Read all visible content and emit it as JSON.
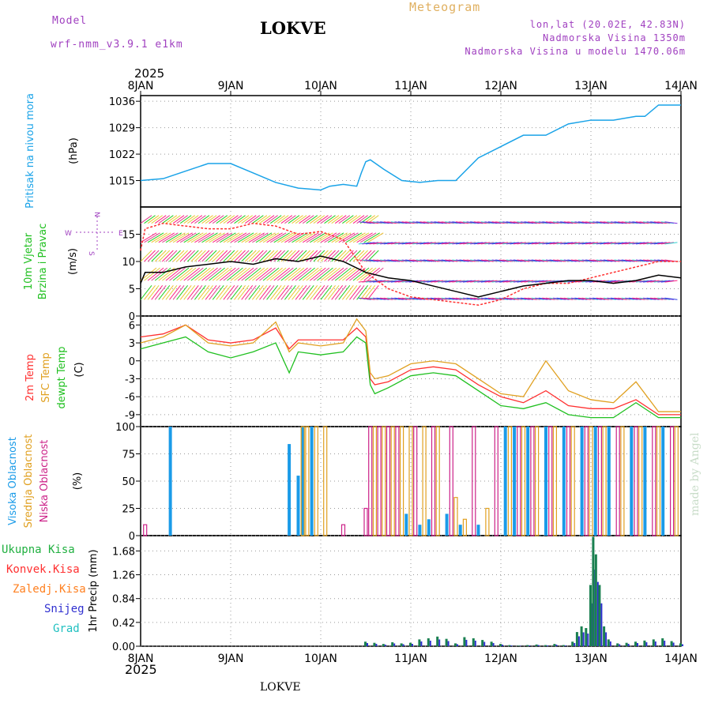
{
  "header": {
    "model_label": "Model",
    "model_name": "wrf-nmm_v3.9.1 e1km",
    "station": "LOKVE",
    "chart_kind": "Meteogram",
    "coords": "lon,lat (20.02E, 42.83N)",
    "altitude": "Nadmorska Visina 1350m",
    "model_altitude": "Nadmorska Visina u modelu 1470.06m",
    "year": "2025",
    "footer_station": "LOKVE",
    "watermark": "made by Angel"
  },
  "colors": {
    "pressure": "#1aa3e8",
    "temp2m": "#ff3030",
    "sfc": "#e0a020",
    "dewpt": "#20c020",
    "high_cloud": "#1a9be8",
    "mid_cloud": "#e0a020",
    "low_cloud": "#cc2288",
    "total_precip": "#20b040",
    "conv": "#ff3030",
    "frz": "#ff8020",
    "snow": "#3030d0",
    "grad": "#20c0c0",
    "gust": "#ff3030",
    "wind": "#000000"
  },
  "chart_data": [
    {
      "type": "line",
      "panel": "pressure",
      "ylabel": "Pritisak na nivou mora",
      "unit": "(hPa)",
      "x_ticks": [
        "8JAN",
        "9JAN",
        "10JAN",
        "11JAN",
        "12JAN",
        "13JAN",
        "14JAN"
      ],
      "yticks": [
        1015,
        1022,
        1029,
        1036
      ],
      "ylim": [
        1008,
        1037.5
      ],
      "x": [
        0,
        0.25,
        0.5,
        0.75,
        1.0,
        1.25,
        1.5,
        1.75,
        2.0,
        2.1,
        2.25,
        2.4,
        2.45,
        2.5,
        2.55,
        2.7,
        2.9,
        3.1,
        3.3,
        3.5,
        3.75,
        4.0,
        4.25,
        4.5,
        4.75,
        5.0,
        5.25,
        5.5,
        5.6,
        5.75,
        6.0
      ],
      "series": [
        {
          "values": [
            1015,
            1015.5,
            1017.5,
            1019.5,
            1019.5,
            1017,
            1014.5,
            1013,
            1012.5,
            1013.5,
            1014,
            1013.5,
            1017,
            1020,
            1020.5,
            1018,
            1015,
            1014.5,
            1015,
            1015,
            1021,
            1024,
            1027,
            1027,
            1030,
            1031,
            1031,
            1032,
            1032,
            1035,
            1035
          ]
        }
      ]
    },
    {
      "type": "line",
      "panel": "wind",
      "ylabel": "10m Vjetar Brzina i Pravac",
      "unit": "(m/s)",
      "direction_key": [
        "N",
        "E",
        "W",
        "S"
      ],
      "yticks": [
        0,
        5,
        10,
        15
      ],
      "ylim": [
        0,
        20
      ],
      "x": [
        0,
        0.05,
        0.25,
        0.5,
        0.75,
        1.0,
        1.25,
        1.5,
        1.75,
        2.0,
        2.25,
        2.5,
        2.75,
        3.0,
        3.25,
        3.5,
        3.75,
        4.0,
        4.25,
        4.5,
        4.75,
        5.0,
        5.25,
        5.5,
        5.75,
        6.0
      ],
      "series": [
        {
          "values": [
            6,
            8,
            8,
            9,
            9.5,
            10,
            9.5,
            10.5,
            10,
            11,
            10,
            8,
            7,
            6.5,
            5.5,
            4.5,
            3.5,
            4.5,
            5.5,
            6,
            6.5,
            6.5,
            6,
            6.5,
            7.5,
            7
          ]
        },
        {
          "values": [
            12,
            16,
            17,
            16.5,
            16,
            16,
            17,
            16.5,
            15,
            15.5,
            14,
            8,
            5,
            3.5,
            3,
            2.5,
            2,
            3,
            5,
            6,
            6,
            7,
            8,
            9,
            10,
            10
          ]
        }
      ]
    },
    {
      "type": "line",
      "panel": "temperature",
      "ylabel": "(C)",
      "series_labels": [
        "2m Temp",
        "SFC Temp",
        "dewpt Temp"
      ],
      "yticks": [
        -9,
        -6,
        -3,
        0,
        3,
        6
      ],
      "ylim": [
        -11,
        7.5
      ],
      "x": [
        0,
        0.25,
        0.5,
        0.75,
        1.0,
        1.25,
        1.5,
        1.65,
        1.75,
        2.0,
        2.25,
        2.4,
        2.5,
        2.55,
        2.6,
        2.75,
        3.0,
        3.25,
        3.5,
        3.75,
        4.0,
        4.25,
        4.5,
        4.75,
        5.0,
        5.25,
        5.5,
        5.75,
        6.0
      ],
      "series": [
        {
          "values": [
            4,
            4.5,
            6,
            3.5,
            3,
            3.5,
            5.5,
            2,
            3.5,
            3.5,
            3.5,
            5.5,
            4,
            -3,
            -4,
            -3.5,
            -1.5,
            -1,
            -1.5,
            -4,
            -6,
            -7,
            -5,
            -7.5,
            -8,
            -8,
            -6.5,
            -9,
            -9
          ]
        },
        {
          "values": [
            3,
            4,
            6,
            3,
            2.5,
            3,
            6.5,
            1.5,
            3,
            2.5,
            3,
            7,
            5,
            -2,
            -3,
            -2.5,
            -0.5,
            0,
            -0.5,
            -3,
            -5.5,
            -6,
            0,
            -5,
            -6.5,
            -7,
            -3.5,
            -8.5,
            -8.5
          ]
        },
        {
          "values": [
            2,
            3,
            4,
            1.5,
            0.5,
            1.5,
            3,
            -2,
            1.5,
            1,
            1.5,
            4,
            3,
            -4,
            -5.5,
            -4.5,
            -2.5,
            -2,
            -2.5,
            -5,
            -7.5,
            -8,
            -7,
            -9,
            -9.5,
            -9.5,
            -7,
            -9.5,
            -9.5
          ]
        }
      ]
    },
    {
      "type": "bar",
      "panel": "clouds",
      "unit": "(%)",
      "series_labels": [
        "Visoka Oblacnost",
        "Srednja Oblacnost",
        "Niska Oblacnost"
      ],
      "yticks": [
        0,
        25,
        50,
        75,
        100
      ],
      "ylim": [
        0,
        100
      ],
      "series": [
        {
          "x": [
            0.33,
            1.65,
            1.75,
            1.8,
            1.9,
            2.95,
            3.1,
            3.2,
            3.4,
            3.55,
            3.75,
            4.05,
            4.15,
            4.3,
            4.5,
            4.7,
            4.9,
            5.05,
            5.2,
            5.45,
            5.6,
            5.8
          ],
          "values": [
            100,
            84,
            55,
            100,
            100,
            20,
            10,
            15,
            20,
            10,
            10,
            100,
            100,
            100,
            100,
            100,
            100,
            100,
            100,
            100,
            100,
            100
          ]
        },
        {
          "x": [
            1.8,
            1.85,
            1.95,
            2.05,
            2.6,
            2.7,
            2.8,
            2.9,
            3.0,
            3.15,
            3.3,
            3.5,
            3.6,
            3.85,
            4.1,
            4.25,
            4.4,
            4.6,
            4.8,
            5.0,
            5.15,
            5.35,
            5.55,
            5.75,
            5.95
          ],
          "values": [
            100,
            100,
            100,
            100,
            100,
            100,
            100,
            100,
            100,
            100,
            100,
            35,
            15,
            25,
            100,
            100,
            100,
            100,
            100,
            100,
            100,
            100,
            100,
            100,
            100
          ]
        },
        {
          "x": [
            0.05,
            2.25,
            2.5,
            2.55,
            2.65,
            2.75,
            2.85,
            3.05,
            3.25,
            3.45,
            3.7,
            3.95,
            4.2,
            4.35,
            4.55,
            4.75,
            4.95,
            5.1,
            5.3,
            5.5,
            5.7,
            5.9
          ],
          "values": [
            10,
            10,
            25,
            100,
            100,
            100,
            100,
            100,
            100,
            100,
            100,
            100,
            100,
            100,
            100,
            100,
            100,
            100,
            100,
            100,
            100,
            100
          ]
        }
      ]
    },
    {
      "type": "bar",
      "panel": "precipitation",
      "ylabel": "1hr Precip (mm)",
      "series_labels": [
        "Ukupna Kisa",
        "Konvek.Kisa",
        "Zaledj.Kisa",
        "Snijeg",
        "Grad"
      ],
      "yticks": [
        0,
        0.42,
        0.84,
        1.26,
        1.68
      ],
      "ylim": [
        0,
        1.95
      ],
      "x_ticks": [
        "8JAN",
        "9JAN",
        "10JAN",
        "11JAN",
        "12JAN",
        "13JAN",
        "14JAN"
      ],
      "x": [
        2.5,
        2.6,
        2.7,
        2.8,
        2.9,
        3.0,
        3.1,
        3.2,
        3.3,
        3.4,
        3.5,
        3.6,
        3.7,
        3.8,
        3.9,
        4.0,
        4.1,
        4.2,
        4.3,
        4.4,
        4.5,
        4.6,
        4.7,
        4.8,
        4.85,
        4.9,
        4.95,
        5.0,
        5.03,
        5.06,
        5.1,
        5.15,
        5.2,
        5.3,
        5.4,
        5.5,
        5.6,
        5.7,
        5.8,
        5.9,
        6.0
      ],
      "series": [
        {
          "values": [
            0.08,
            0.06,
            0.04,
            0.07,
            0.05,
            0.06,
            0.12,
            0.14,
            0.17,
            0.13,
            0.05,
            0.16,
            0.14,
            0.11,
            0.08,
            0.04,
            0.02,
            0.01,
            0.02,
            0.03,
            0.02,
            0.04,
            0.02,
            0.08,
            0.25,
            0.35,
            0.32,
            1.08,
            1.93,
            1.62,
            1.08,
            0.35,
            0.12,
            0.05,
            0.06,
            0.08,
            0.1,
            0.12,
            0.14,
            0.09,
            0.05
          ]
        }
      ]
    }
  ]
}
